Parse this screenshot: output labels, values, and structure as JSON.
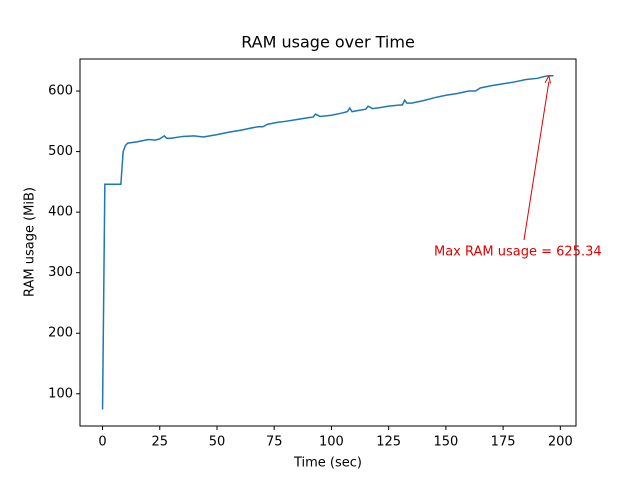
{
  "chart_data": {
    "type": "line",
    "title": "RAM usage over Time",
    "x_label": "Time (sec)",
    "y_label": "RAM usage (MiB)",
    "series": [
      {
        "name": "RAM usage",
        "color": "#1f77b4",
        "x": [
          0,
          1,
          8,
          9,
          10,
          11,
          15,
          20,
          23,
          25,
          27,
          28,
          30,
          35,
          40,
          44,
          50,
          55,
          60,
          65,
          68,
          70,
          72,
          76,
          80,
          85,
          90,
          92,
          93,
          95,
          100,
          105,
          107,
          108,
          109,
          112,
          115,
          116,
          118,
          120,
          125,
          130,
          131,
          132,
          133,
          135,
          140,
          145,
          150,
          155,
          160,
          163,
          165,
          170,
          175,
          180,
          185,
          190,
          193,
          195,
          197
        ],
        "values": [
          74,
          446,
          446,
          500,
          510,
          514,
          516,
          520,
          519,
          521,
          526,
          522,
          522,
          525,
          526,
          524,
          528,
          532,
          535,
          539,
          541,
          541,
          545,
          548,
          550,
          553,
          556,
          557,
          562,
          558,
          560,
          564,
          566,
          572,
          566,
          568,
          570,
          575,
          571,
          572,
          575,
          577,
          577,
          585,
          580,
          580,
          584,
          589,
          593,
          596,
          600,
          600,
          605,
          609,
          612,
          615,
          619,
          621,
          624,
          625.34,
          625.34
        ]
      }
    ],
    "xlim": [
      -9.85,
      206.85
    ],
    "ylim": [
      46.8,
      652.9
    ],
    "xticks": [
      0,
      25,
      50,
      75,
      100,
      125,
      150,
      175,
      200
    ],
    "yticks": [
      100,
      200,
      300,
      400,
      500,
      600
    ],
    "annotation": {
      "text": "Max RAM usage = 625.34",
      "color": "#e00000"
    }
  }
}
